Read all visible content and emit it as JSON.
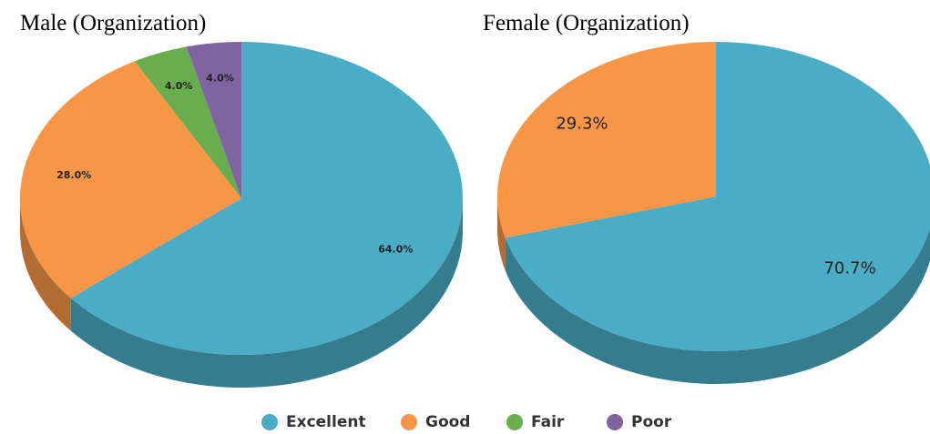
{
  "chart_data": [
    {
      "type": "pie",
      "title": "Male (Organization)",
      "categories": [
        "Excellent",
        "Good",
        "Fair",
        "Poor"
      ],
      "values": [
        64.0,
        28.0,
        4.0,
        4.0
      ],
      "value_labels": [
        "64.0%",
        "28.0%",
        "4.0%",
        "4.0%"
      ],
      "colors": [
        "#4bacc6",
        "#f79646",
        "#6aad4e",
        "#8064a2"
      ],
      "legend": "bottom"
    },
    {
      "type": "pie",
      "title": "Female (Organization)",
      "categories": [
        "Excellent",
        "Good"
      ],
      "values": [
        70.7,
        29.3
      ],
      "value_labels": [
        "70.7%",
        "29.3%"
      ],
      "colors": [
        "#4bacc6",
        "#f79646"
      ]
    }
  ]
}
